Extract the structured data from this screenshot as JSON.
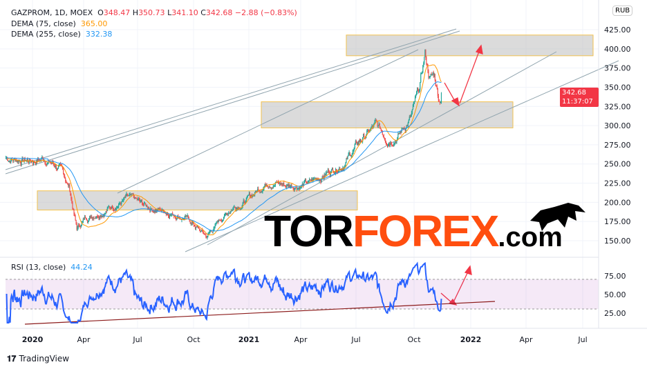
{
  "header": {
    "symbol": "GAZPROM, 1D, MOEX",
    "o_label": "O",
    "o": "348.47",
    "h_label": "H",
    "h": "350.73",
    "l_label": "L",
    "l": "341.10",
    "c_label": "C",
    "c": "342.68",
    "change": "−2.88 (−0.83%)",
    "dema75_label": "DEMA (75, close)",
    "dema75": "365.00",
    "dema255_label": "DEMA (255, close)",
    "dema255": "332.38"
  },
  "rsi": {
    "label": "RSI (13, close)",
    "value": "44.24",
    "ticks": [
      "75.00",
      "50.00",
      "25.00"
    ]
  },
  "price_axis": {
    "currency": "RUB",
    "ticks": [
      "425.00",
      "400.00",
      "375.00",
      "350.00",
      "325.00",
      "300.00",
      "275.00",
      "250.00",
      "225.00",
      "200.00",
      "175.00",
      "150.00"
    ],
    "last_price": "342.68",
    "countdown": "11:37:07"
  },
  "time_axis": [
    "2020",
    "Apr",
    "Jul",
    "Oct",
    "2021",
    "Apr",
    "Jul",
    "Oct",
    "2022",
    "Apr",
    "Jul"
  ],
  "watermark": {
    "a": "TOR",
    "b": "FOREX",
    "c": ".com"
  },
  "footer": {
    "brand": "TradingView"
  },
  "colors": {
    "up": "#26a69a",
    "down": "#ef5350",
    "dema75": "#ff9800",
    "dema255": "#2196f3",
    "rsi": "#2962ff",
    "accent": "#f23645"
  },
  "chart_data": {
    "type": "candlestick",
    "price_keypoints_day_price": [
      [
        -45,
        258
      ],
      [
        0,
        255
      ],
      [
        20,
        258
      ],
      [
        45,
        245
      ],
      [
        62,
        220
      ],
      [
        75,
        165
      ],
      [
        90,
        180
      ],
      [
        120,
        190
      ],
      [
        160,
        205
      ],
      [
        190,
        195
      ],
      [
        230,
        188
      ],
      [
        260,
        180
      ],
      [
        295,
        155
      ],
      [
        315,
        175
      ],
      [
        340,
        195
      ],
      [
        366,
        205
      ],
      [
        400,
        230
      ],
      [
        430,
        222
      ],
      [
        470,
        225
      ],
      [
        500,
        240
      ],
      [
        530,
        255
      ],
      [
        560,
        285
      ],
      [
        580,
        298
      ],
      [
        600,
        285
      ],
      [
        620,
        290
      ],
      [
        640,
        310
      ],
      [
        655,
        345
      ],
      [
        664,
        392
      ],
      [
        672,
        362
      ],
      [
        680,
        365
      ],
      [
        688,
        335
      ],
      [
        693,
        342.68
      ]
    ],
    "zones": [
      [
        190,
        215
      ],
      [
        297,
        331
      ],
      [
        391,
        418
      ]
    ],
    "ylim": [
      140,
      450
    ]
  }
}
